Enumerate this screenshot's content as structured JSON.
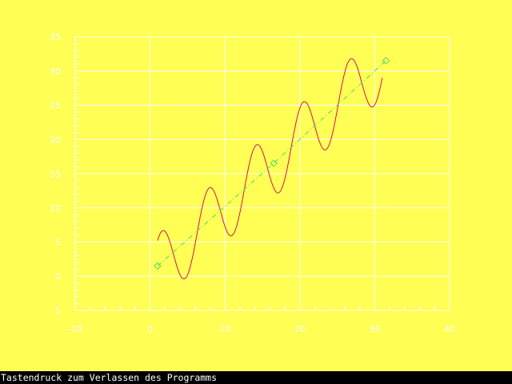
{
  "colors": {
    "background": "#ffff55",
    "axes": "#ffffff",
    "curve": "#d4145a",
    "fit_line": "#4cd96a",
    "status_bg": "#000000",
    "status_fg": "#ffffff"
  },
  "status": {
    "text": "Tastendruck zum Verlassen des Programms"
  },
  "chart_data": {
    "type": "line",
    "title": "",
    "xlabel": "",
    "ylabel": "",
    "xlim": [
      -10,
      40
    ],
    "ylim": [
      -5,
      35
    ],
    "grid": true,
    "x_ticks": [
      -10,
      0,
      10,
      20,
      30,
      40
    ],
    "y_ticks": [
      -5,
      0,
      5,
      10,
      15,
      20,
      25,
      30,
      35
    ],
    "x_tick_labels": [
      "-10",
      "0",
      "10",
      "20",
      "30",
      "40"
    ],
    "y_tick_labels": [
      "-5",
      "0",
      "5",
      "10",
      "15",
      "20",
      "25",
      "30",
      "35"
    ],
    "x_minor_step": 2,
    "y_minor_step": 1,
    "series": [
      {
        "style": "solid",
        "color": "#d4145a",
        "x_range": [
          1,
          31
        ],
        "function": "x + 5*sin(x)"
      },
      {
        "style": "dash-dot",
        "color": "#4cd96a",
        "marker": "diamond",
        "x": [
          1,
          16.5,
          31.5
        ],
        "y": [
          1.5,
          16.5,
          31.5
        ]
      }
    ]
  }
}
